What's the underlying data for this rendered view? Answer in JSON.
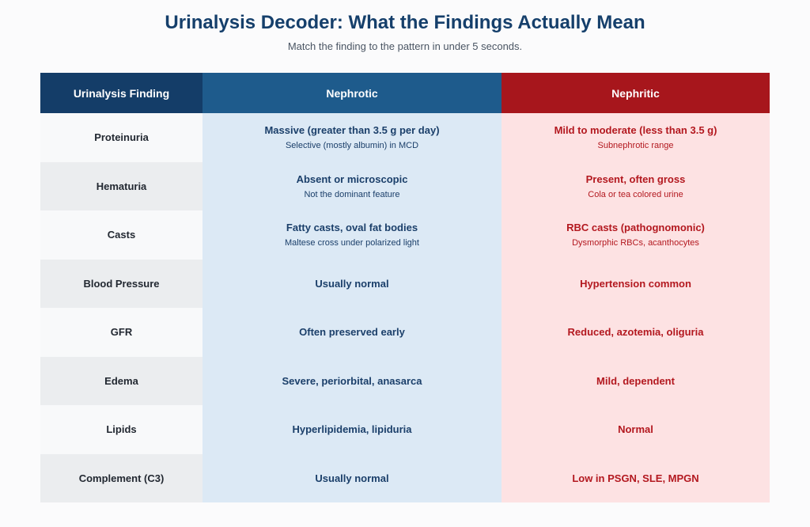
{
  "title": "Urinalysis Decoder: What the Findings Actually Mean",
  "subtitle": "Match the finding to the pattern in under 5 seconds.",
  "colors": {
    "title": "#153f6b",
    "header_finding": "#143d68",
    "header_nephrotic": "#1e5b8c",
    "header_nephritic": "#a7161c",
    "nephrotic_cell": "#dce9f5",
    "nephritic_cell": "#fde2e3",
    "nephrotic_text": "#1b3f6a",
    "nephritic_text": "#b3181f"
  },
  "table": {
    "headers": [
      "Urinalysis Finding",
      "Nephrotic",
      "Nephritic"
    ],
    "rows": [
      {
        "finding": "Proteinuria",
        "nephrotic": {
          "main": "Massive (greater than 3.5 g per day)",
          "sub": "Selective (mostly albumin) in MCD"
        },
        "nephritic": {
          "main": "Mild to moderate (less than 3.5 g)",
          "sub": "Subnephrotic range"
        }
      },
      {
        "finding": "Hematuria",
        "nephrotic": {
          "main": "Absent or microscopic",
          "sub": "Not the dominant feature"
        },
        "nephritic": {
          "main": "Present, often gross",
          "sub": "Cola or tea colored urine"
        }
      },
      {
        "finding": "Casts",
        "nephrotic": {
          "main": "Fatty casts, oval fat bodies",
          "sub": "Maltese cross under polarized light"
        },
        "nephritic": {
          "main": "RBC casts (pathognomonic)",
          "sub": "Dysmorphic RBCs, acanthocytes"
        }
      },
      {
        "finding": "Blood Pressure",
        "nephrotic": {
          "main": "Usually normal",
          "sub": ""
        },
        "nephritic": {
          "main": "Hypertension common",
          "sub": ""
        }
      },
      {
        "finding": "GFR",
        "nephrotic": {
          "main": "Often preserved early",
          "sub": ""
        },
        "nephritic": {
          "main": "Reduced, azotemia, oliguria",
          "sub": ""
        }
      },
      {
        "finding": "Edema",
        "nephrotic": {
          "main": "Severe, periorbital, anasarca",
          "sub": ""
        },
        "nephritic": {
          "main": "Mild, dependent",
          "sub": ""
        }
      },
      {
        "finding": "Lipids",
        "nephrotic": {
          "main": "Hyperlipidemia, lipiduria",
          "sub": ""
        },
        "nephritic": {
          "main": "Normal",
          "sub": ""
        }
      },
      {
        "finding": "Complement (C3)",
        "nephrotic": {
          "main": "Usually normal",
          "sub": ""
        },
        "nephritic": {
          "main": "Low in PSGN, SLE, MPGN",
          "sub": ""
        }
      }
    ]
  }
}
